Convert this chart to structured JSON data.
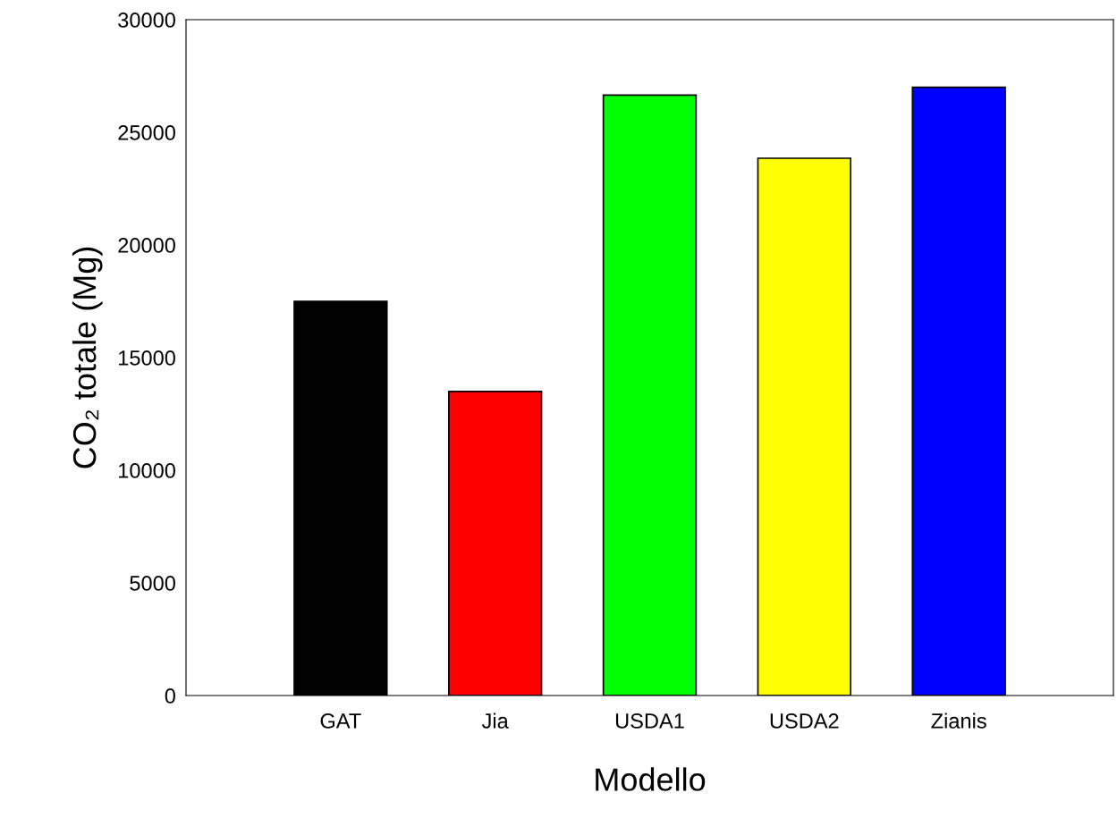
{
  "chart_data": {
    "type": "bar",
    "categories": [
      "GAT",
      "Jia",
      "USDA1",
      "USDA2",
      "Zianis"
    ],
    "values": [
      17500,
      13500,
      26650,
      23850,
      27000
    ],
    "colors": [
      "#000000",
      "#ff0000",
      "#00ff00",
      "#ffff00",
      "#0000ff"
    ],
    "xlabel": "Modello",
    "ylabel": "CO₂ totale (Mg)",
    "ylim": [
      0,
      30000
    ],
    "yticks": [
      0,
      5000,
      10000,
      15000,
      20000,
      25000,
      30000
    ],
    "grid": false,
    "legend": false
  }
}
